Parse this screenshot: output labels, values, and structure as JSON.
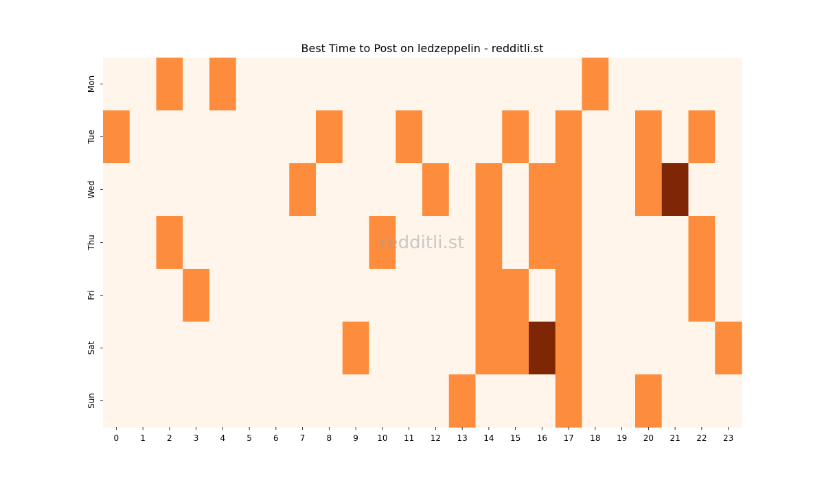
{
  "chart_data": {
    "type": "heatmap",
    "title": "Best Time to Post on ledzeppelin - redditli.st",
    "watermark": "redditli.st",
    "xlabel": "",
    "ylabel": "",
    "x_categories": [
      "0",
      "1",
      "2",
      "3",
      "4",
      "5",
      "6",
      "7",
      "8",
      "9",
      "10",
      "11",
      "12",
      "13",
      "14",
      "15",
      "16",
      "17",
      "18",
      "19",
      "20",
      "21",
      "22",
      "23"
    ],
    "y_categories": [
      "Mon",
      "Tue",
      "Wed",
      "Thu",
      "Fri",
      "Sat",
      "Sun"
    ],
    "values": [
      [
        0,
        0,
        1,
        0,
        1,
        0,
        0,
        0,
        0,
        0,
        0,
        0,
        0,
        0,
        0,
        0,
        0,
        0,
        1,
        0,
        0,
        0,
        0,
        0
      ],
      [
        1,
        0,
        0,
        0,
        0,
        0,
        0,
        0,
        1,
        0,
        0,
        1,
        0,
        0,
        0,
        1,
        0,
        1,
        0,
        0,
        1,
        0,
        1,
        0
      ],
      [
        0,
        0,
        0,
        0,
        0,
        0,
        0,
        1,
        0,
        0,
        0,
        0,
        1,
        0,
        1,
        0,
        1,
        1,
        0,
        0,
        1,
        2,
        0,
        0
      ],
      [
        0,
        0,
        1,
        0,
        0,
        0,
        0,
        0,
        0,
        0,
        1,
        0,
        0,
        0,
        1,
        0,
        1,
        1,
        0,
        0,
        0,
        0,
        1,
        0
      ],
      [
        0,
        0,
        0,
        1,
        0,
        0,
        0,
        0,
        0,
        0,
        0,
        0,
        0,
        0,
        1,
        1,
        0,
        1,
        0,
        0,
        0,
        0,
        1,
        0
      ],
      [
        0,
        0,
        0,
        0,
        0,
        0,
        0,
        0,
        0,
        1,
        0,
        0,
        0,
        0,
        1,
        1,
        2,
        1,
        0,
        0,
        0,
        0,
        0,
        1
      ],
      [
        0,
        0,
        0,
        0,
        0,
        0,
        0,
        0,
        0,
        0,
        0,
        0,
        0,
        1,
        0,
        0,
        0,
        1,
        0,
        0,
        1,
        0,
        0,
        0
      ]
    ],
    "colors": {
      "level_0": "#fff5eb",
      "level_1": "#fd8d3c",
      "level_2": "#7f2704"
    },
    "colorbar": false,
    "grid": false
  }
}
